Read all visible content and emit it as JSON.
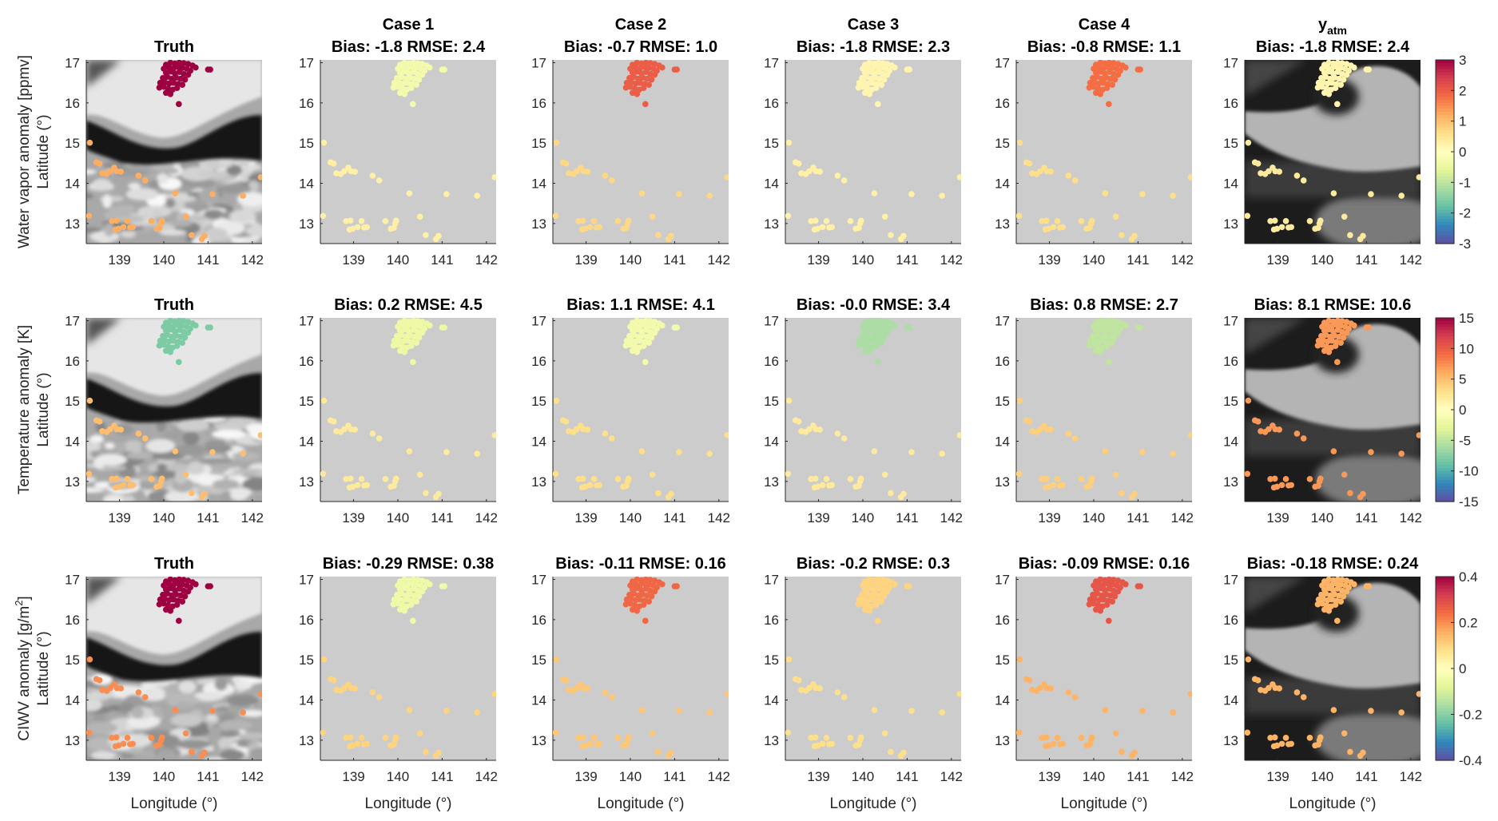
{
  "chart_data": {
    "type": "scatter",
    "xlabel": "Longitude (°)",
    "ylabel": "Latitude (°)",
    "xlim": [
      138.25,
      142.22
    ],
    "ylim": [
      12.5,
      17.07
    ],
    "xticks": [
      "139",
      "140",
      "141",
      "142"
    ],
    "yticks": [
      "13",
      "14",
      "15",
      "16",
      "17"
    ],
    "grid": false,
    "colormap": [
      "#5e4fa2",
      "#3288bd",
      "#66c2a5",
      "#abdda4",
      "#e6f598",
      "#ffffbf",
      "#fee08b",
      "#fdae61",
      "#f46d43",
      "#d53e4f",
      "#9e0142"
    ],
    "columns": [
      {
        "title": "Truth",
        "background": "satellite-imagery-truth"
      },
      {
        "title": "Case 1",
        "background": "gray"
      },
      {
        "title": "Case 2",
        "background": "gray"
      },
      {
        "title": "Case 3",
        "background": "gray"
      },
      {
        "title": "Case 4",
        "background": "gray"
      },
      {
        "title": "y",
        "title_subscript": "atm",
        "background": "satellite-imagery-yatm"
      }
    ],
    "rows": [
      {
        "row_label": "Water vapor anomaly [ppmv]",
        "clim": [
          -3,
          3
        ],
        "colorbar_ticks": [
          "3",
          "2",
          "1",
          "0",
          "-1",
          "-2",
          "-3"
        ],
        "panels": [
          {
            "subtitle": "Truth",
            "cluster_value": 3.0,
            "outer_value": 1.2
          },
          {
            "subtitle": "Bias: -1.8 RMSE: 2.4",
            "cluster_value": -0.3,
            "outer_value": 0.3
          },
          {
            "subtitle": "Bias: -0.7 RMSE: 1.0",
            "cluster_value": 2.0,
            "outer_value": 0.7
          },
          {
            "subtitle": "Bias: -1.8 RMSE: 2.3",
            "cluster_value": 0.2,
            "outer_value": 0.3
          },
          {
            "subtitle": "Bias: -0.8 RMSE: 1.1",
            "cluster_value": 1.8,
            "outer_value": 0.6
          },
          {
            "subtitle": "Bias: -1.8 RMSE: 2.4",
            "cluster_value": 0.2,
            "outer_value": 0.4
          }
        ]
      },
      {
        "row_label": "Temperature anomaly [K]",
        "clim": [
          -15,
          15
        ],
        "colorbar_ticks": [
          "15",
          "10",
          "5",
          "0",
          "-5",
          "-10",
          "-15"
        ],
        "panels": [
          {
            "subtitle": "Truth",
            "cluster_value": -8,
            "outer_value": 5
          },
          {
            "subtitle": "Bias: 0.2 RMSE: 4.5",
            "cluster_value": -2,
            "outer_value": 2
          },
          {
            "subtitle": "Bias: 1.1 RMSE: 4.1",
            "cluster_value": -1.5,
            "outer_value": 3
          },
          {
            "subtitle": "Bias: -0.0 RMSE: 3.4",
            "cluster_value": -6,
            "outer_value": 2
          },
          {
            "subtitle": "Bias: 0.8 RMSE: 2.7",
            "cluster_value": -5,
            "outer_value": 4
          },
          {
            "subtitle": "Bias: 8.1 RMSE: 10.6",
            "cluster_value": 7,
            "outer_value": 7
          }
        ]
      },
      {
        "row_label": "CIWV anomaly [g/m",
        "row_label_sup": "2",
        "row_label_end": "]",
        "clim": [
          -0.4,
          0.4
        ],
        "colorbar_ticks": [
          "0.4",
          "0.2",
          "0",
          "-0.2",
          "-0.4"
        ],
        "panels": [
          {
            "subtitle": "Truth",
            "cluster_value": 0.4,
            "outer_value": 0.2
          },
          {
            "subtitle": "Bias: -0.29 RMSE: 0.38",
            "cluster_value": -0.05,
            "outer_value": 0.1
          },
          {
            "subtitle": "Bias: -0.11 RMSE: 0.16",
            "cluster_value": 0.25,
            "outer_value": 0.12
          },
          {
            "subtitle": "Bias: -0.2 RMSE: 0.3",
            "cluster_value": 0.1,
            "outer_value": 0.08
          },
          {
            "subtitle": "Bias: -0.09 RMSE: 0.16",
            "cluster_value": 0.28,
            "outer_value": 0.15
          },
          {
            "subtitle": "Bias: -0.18 RMSE: 0.24",
            "cluster_value": 0.15,
            "outer_value": 0.15
          }
        ]
      }
    ],
    "cluster_points": [
      [
        140.05,
        16.95
      ],
      [
        140.15,
        17.0
      ],
      [
        140.25,
        16.98
      ],
      [
        140.35,
        17.0
      ],
      [
        140.45,
        16.99
      ],
      [
        140.55,
        16.97
      ],
      [
        140.65,
        16.93
      ],
      [
        140.72,
        16.88
      ],
      [
        140.0,
        16.85
      ],
      [
        140.12,
        16.88
      ],
      [
        140.22,
        16.86
      ],
      [
        140.32,
        16.9
      ],
      [
        140.42,
        16.87
      ],
      [
        140.52,
        16.85
      ],
      [
        140.6,
        16.8
      ],
      [
        140.05,
        16.75
      ],
      [
        140.15,
        16.78
      ],
      [
        140.25,
        16.73
      ],
      [
        140.35,
        16.77
      ],
      [
        140.45,
        16.72
      ],
      [
        140.55,
        16.7
      ],
      [
        139.98,
        16.62
      ],
      [
        140.08,
        16.65
      ],
      [
        140.18,
        16.6
      ],
      [
        140.28,
        16.63
      ],
      [
        140.38,
        16.6
      ],
      [
        140.48,
        16.58
      ],
      [
        139.92,
        16.5
      ],
      [
        140.02,
        16.52
      ],
      [
        140.12,
        16.48
      ],
      [
        140.22,
        16.5
      ],
      [
        140.32,
        16.47
      ],
      [
        140.42,
        16.45
      ],
      [
        139.9,
        16.38
      ],
      [
        140.0,
        16.4
      ],
      [
        140.1,
        16.35
      ],
      [
        140.2,
        16.33
      ],
      [
        140.3,
        16.37
      ],
      [
        140.05,
        16.25
      ],
      [
        140.15,
        16.22
      ],
      [
        140.34,
        15.97
      ],
      [
        141.0,
        16.83
      ],
      [
        141.05,
        16.83
      ]
    ],
    "outer_points": [
      [
        138.33,
        15.01
      ],
      [
        138.48,
        14.52
      ],
      [
        138.55,
        14.49
      ],
      [
        138.61,
        14.25
      ],
      [
        138.71,
        14.23
      ],
      [
        138.79,
        14.3
      ],
      [
        138.88,
        14.39
      ],
      [
        138.94,
        14.3
      ],
      [
        139.03,
        14.29
      ],
      [
        139.43,
        14.19
      ],
      [
        139.58,
        14.07
      ],
      [
        140.26,
        13.75
      ],
      [
        141.1,
        13.73
      ],
      [
        141.79,
        13.69
      ],
      [
        142.19,
        14.15
      ],
      [
        138.31,
        13.19
      ],
      [
        138.83,
        13.06
      ],
      [
        138.93,
        13.07
      ],
      [
        138.91,
        12.85
      ],
      [
        138.98,
        12.87
      ],
      [
        139.09,
        12.91
      ],
      [
        139.18,
        13.06
      ],
      [
        139.24,
        12.9
      ],
      [
        139.3,
        12.91
      ],
      [
        139.72,
        13.06
      ],
      [
        139.84,
        12.87
      ],
      [
        139.91,
        12.89
      ],
      [
        139.94,
        13.0
      ],
      [
        139.96,
        13.07
      ],
      [
        140.5,
        13.17
      ],
      [
        140.63,
        12.71
      ],
      [
        140.86,
        12.61
      ],
      [
        140.92,
        12.69
      ]
    ]
  }
}
